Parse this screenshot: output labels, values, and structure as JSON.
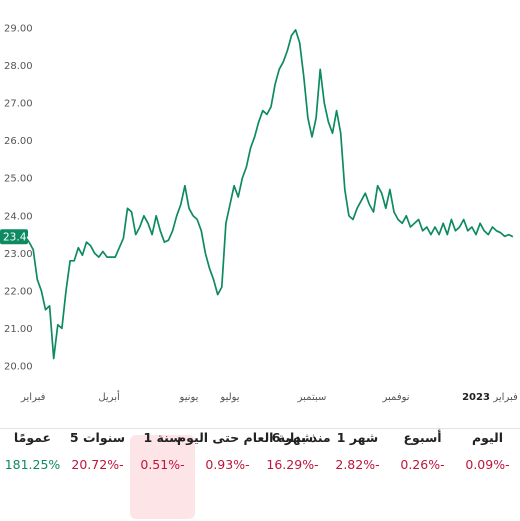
{
  "chart_data": {
    "type": "line",
    "y_ticks": [
      "20.00",
      "21.00",
      "22.00",
      "23.00",
      "24.00",
      "25.00",
      "26.00",
      "27.00",
      "28.00",
      "29.00"
    ],
    "ylim": [
      20,
      29
    ],
    "x_ticks": [
      {
        "label": "فبراير",
        "x": 0.2,
        "bold": false
      },
      {
        "label": "أبريل",
        "x": 2.05,
        "bold": false
      },
      {
        "label": "يونيو",
        "x": 4.0,
        "bold": false
      },
      {
        "label": "يوليو",
        "x": 5.0,
        "bold": false
      },
      {
        "label": "سبتمبر",
        "x": 7.0,
        "bold": false
      },
      {
        "label": "نوفمبر",
        "x": 9.05,
        "bold": false
      },
      {
        "label": "2023",
        "x": 11.0,
        "bold": true
      },
      {
        "label": "فبراير",
        "x": 12.0,
        "bold": false
      }
    ],
    "current_value": "23.44",
    "line_color": "#0e8a63",
    "grid": false,
    "series": [
      {
        "values": [
          [
            0.0,
            23.45
          ],
          [
            0.1,
            23.3
          ],
          [
            0.2,
            23.1
          ],
          [
            0.3,
            22.3
          ],
          [
            0.4,
            22.0
          ],
          [
            0.5,
            21.5
          ],
          [
            0.6,
            21.6
          ],
          [
            0.7,
            20.2
          ],
          [
            0.8,
            21.1
          ],
          [
            0.9,
            21.0
          ],
          [
            1.0,
            22.0
          ],
          [
            1.1,
            22.8
          ],
          [
            1.2,
            22.8
          ],
          [
            1.3,
            23.15
          ],
          [
            1.4,
            22.95
          ],
          [
            1.5,
            23.3
          ],
          [
            1.6,
            23.2
          ],
          [
            1.7,
            23.0
          ],
          [
            1.8,
            22.9
          ],
          [
            1.9,
            23.05
          ],
          [
            2.0,
            22.9
          ],
          [
            2.2,
            22.9
          ],
          [
            2.4,
            23.4
          ],
          [
            2.5,
            24.2
          ],
          [
            2.6,
            24.1
          ],
          [
            2.7,
            23.5
          ],
          [
            2.8,
            23.7
          ],
          [
            2.9,
            24.0
          ],
          [
            3.0,
            23.8
          ],
          [
            3.1,
            23.5
          ],
          [
            3.2,
            24.0
          ],
          [
            3.3,
            23.6
          ],
          [
            3.4,
            23.3
          ],
          [
            3.5,
            23.35
          ],
          [
            3.6,
            23.6
          ],
          [
            3.7,
            24.0
          ],
          [
            3.8,
            24.3
          ],
          [
            3.9,
            24.8
          ],
          [
            4.0,
            24.2
          ],
          [
            4.1,
            24.0
          ],
          [
            4.2,
            23.9
          ],
          [
            4.3,
            23.6
          ],
          [
            4.4,
            23.0
          ],
          [
            4.5,
            22.6
          ],
          [
            4.6,
            22.3
          ],
          [
            4.7,
            21.9
          ],
          [
            4.8,
            22.1
          ],
          [
            4.9,
            23.8
          ],
          [
            5.0,
            24.3
          ],
          [
            5.1,
            24.8
          ],
          [
            5.2,
            24.5
          ],
          [
            5.3,
            25.0
          ],
          [
            5.4,
            25.3
          ],
          [
            5.5,
            25.8
          ],
          [
            5.6,
            26.1
          ],
          [
            5.7,
            26.5
          ],
          [
            5.8,
            26.8
          ],
          [
            5.9,
            26.7
          ],
          [
            6.0,
            26.9
          ],
          [
            6.1,
            27.5
          ],
          [
            6.2,
            27.9
          ],
          [
            6.3,
            28.1
          ],
          [
            6.4,
            28.4
          ],
          [
            6.5,
            28.8
          ],
          [
            6.6,
            28.95
          ],
          [
            6.7,
            28.6
          ],
          [
            6.8,
            27.7
          ],
          [
            6.9,
            26.6
          ],
          [
            7.0,
            26.1
          ],
          [
            7.1,
            26.6
          ],
          [
            7.2,
            27.9
          ],
          [
            7.3,
            27.0
          ],
          [
            7.4,
            26.5
          ],
          [
            7.5,
            26.2
          ],
          [
            7.6,
            26.8
          ],
          [
            7.7,
            26.2
          ],
          [
            7.8,
            24.7
          ],
          [
            7.9,
            24.0
          ],
          [
            8.0,
            23.9
          ],
          [
            8.1,
            24.2
          ],
          [
            8.2,
            24.4
          ],
          [
            8.3,
            24.6
          ],
          [
            8.4,
            24.3
          ],
          [
            8.5,
            24.1
          ],
          [
            8.6,
            24.8
          ],
          [
            8.7,
            24.6
          ],
          [
            8.8,
            24.2
          ],
          [
            8.9,
            24.7
          ],
          [
            9.0,
            24.1
          ],
          [
            9.1,
            23.9
          ],
          [
            9.2,
            23.8
          ],
          [
            9.3,
            24.0
          ],
          [
            9.4,
            23.7
          ],
          [
            9.5,
            23.8
          ],
          [
            9.6,
            23.9
          ],
          [
            9.7,
            23.6
          ],
          [
            9.8,
            23.7
          ],
          [
            9.9,
            23.5
          ],
          [
            10.0,
            23.7
          ],
          [
            10.1,
            23.5
          ],
          [
            10.2,
            23.8
          ],
          [
            10.3,
            23.5
          ],
          [
            10.4,
            23.9
          ],
          [
            10.5,
            23.6
          ],
          [
            10.6,
            23.7
          ],
          [
            10.7,
            23.9
          ],
          [
            10.8,
            23.6
          ],
          [
            10.9,
            23.7
          ],
          [
            11.0,
            23.5
          ],
          [
            11.1,
            23.8
          ],
          [
            11.2,
            23.6
          ],
          [
            11.3,
            23.5
          ],
          [
            11.4,
            23.7
          ],
          [
            11.5,
            23.6
          ],
          [
            11.6,
            23.55
          ],
          [
            11.7,
            23.45
          ],
          [
            11.8,
            23.5
          ],
          [
            11.9,
            23.44
          ]
        ]
      }
    ]
  },
  "stats": [
    {
      "label": "عمومًا",
      "value": "181.25%",
      "positive": true,
      "selected": false
    },
    {
      "label": "5 سنوات",
      "value": "20.72%-",
      "positive": false,
      "selected": false
    },
    {
      "label": "1 سنة",
      "value": "0.51%-",
      "positive": false,
      "selected": true
    },
    {
      "label": "منذ بداية العام حتى اليوم",
      "value": "0.93%-",
      "positive": false,
      "selected": false
    },
    {
      "label": "6 شهر",
      "value": "16.29%-",
      "positive": false,
      "selected": false
    },
    {
      "label": "1 شهر",
      "value": "2.82%-",
      "positive": false,
      "selected": false
    },
    {
      "label": "أسبوع",
      "value": "0.26%-",
      "positive": false,
      "selected": false
    },
    {
      "label": "اليوم",
      "value": "0.09%-",
      "positive": false,
      "selected": false
    }
  ]
}
